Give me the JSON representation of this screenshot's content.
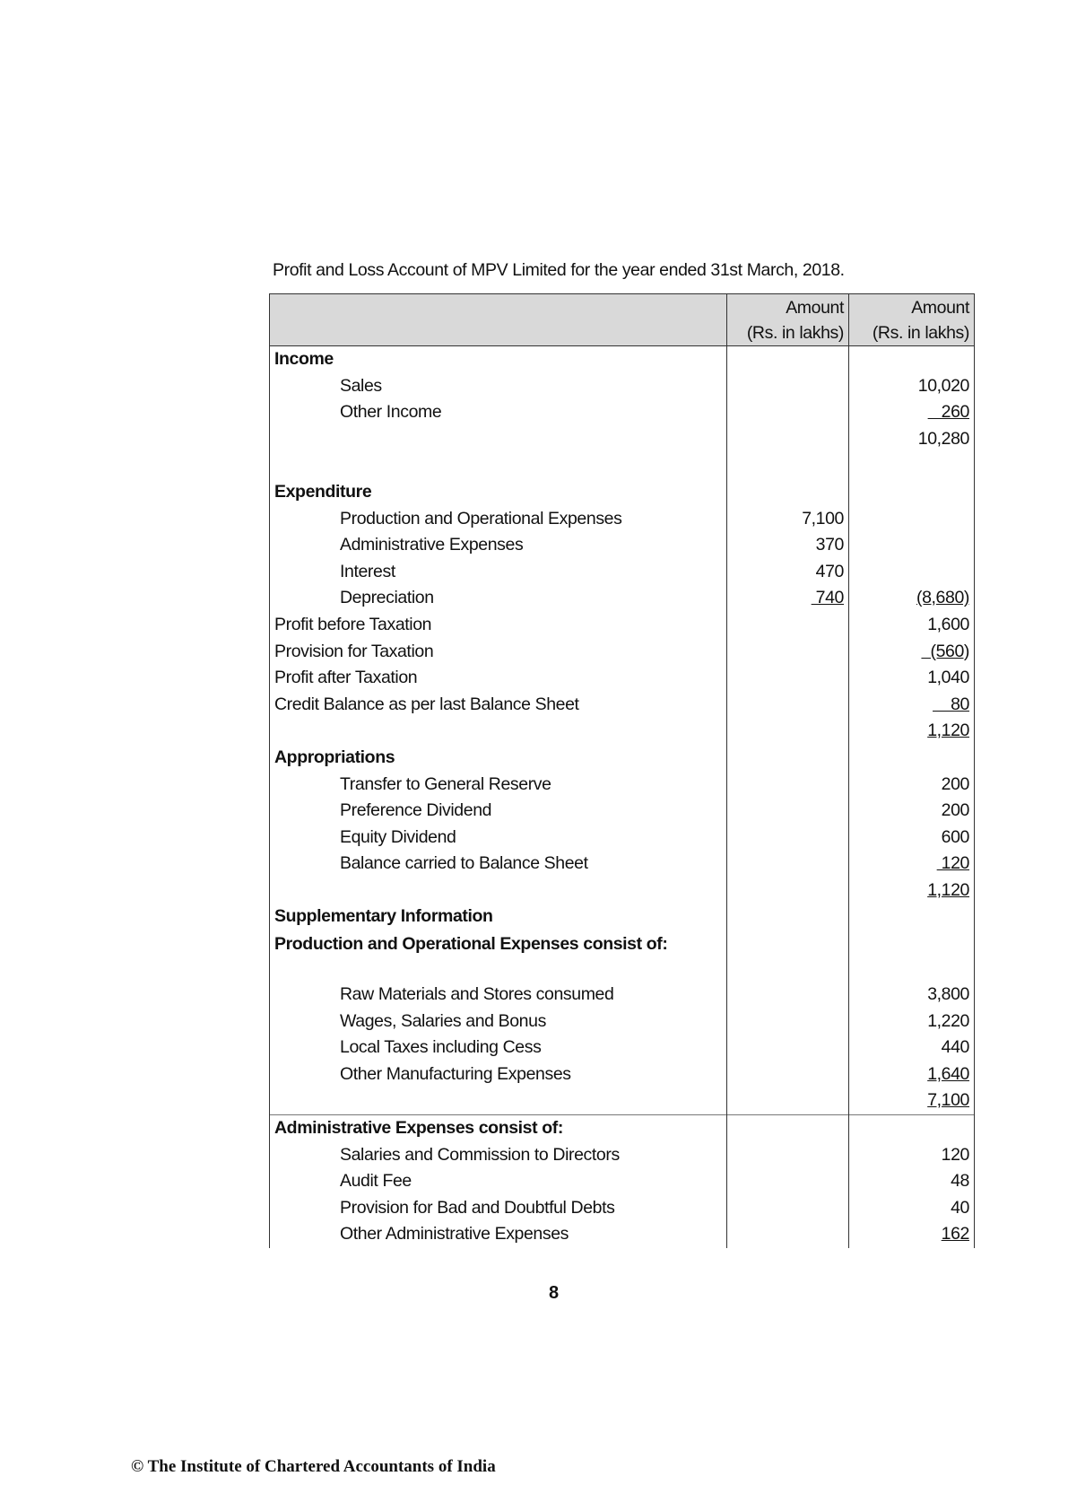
{
  "title": "Profit and Loss Account of MPV Limited for the year ended 31st March, 2018.",
  "header": {
    "col1_line1": "Amount",
    "col1_line2": "(Rs. in lakhs)",
    "col2_line1": "Amount",
    "col2_line2": "(Rs. in lakhs)"
  },
  "rows": [
    {
      "label": "Income",
      "bold": true
    },
    {
      "label": "Sales",
      "indent": true,
      "c2": "10,020"
    },
    {
      "label": "Other Income",
      "indent": true,
      "c2": "   260",
      "u2": true
    },
    {
      "label": "",
      "c2": "10,280"
    },
    {
      "label": ""
    },
    {
      "label": "Expenditure",
      "bold": true
    },
    {
      "label": "Production and Operational Expenses",
      "indent": true,
      "c1": "7,100"
    },
    {
      "label": "Administrative Expenses",
      "indent": true,
      "c1": "370"
    },
    {
      "label": "Interest",
      "indent": true,
      "c1": "470"
    },
    {
      "label": "Depreciation",
      "indent": true,
      "c1": " 740",
      "u1": true,
      "c2": "(8,680)",
      "u2": true
    },
    {
      "label": "Profit before Taxation",
      "c2": "1,600"
    },
    {
      "label": "Provision for Taxation",
      "c2": "  (560)",
      "u2": true
    },
    {
      "label": "Profit after Taxation",
      "c2": "1,040"
    },
    {
      "label": "Credit Balance as per last Balance Sheet",
      "c2": "    80",
      "u2": true
    },
    {
      "label": "",
      "c2": "1,120",
      "u2": true
    },
    {
      "label": "Appropriations",
      "bold": true
    },
    {
      "label": "Transfer to General Reserve",
      "indent": true,
      "c2": "200"
    },
    {
      "label": "Preference Dividend",
      "indent": true,
      "c2": "200"
    },
    {
      "label": "Equity Dividend",
      "indent": true,
      "c2": "600"
    },
    {
      "label": "Balance carried to Balance Sheet",
      "indent": true,
      "c2": " 120",
      "u2": true
    },
    {
      "label": "",
      "c2": "1,120",
      "u2": true
    },
    {
      "label": "Supplementary Information",
      "bold": true
    },
    {
      "label": "Production and Operational Expenses consist of:",
      "bold": true,
      "wrap": true
    },
    {
      "label": "Raw Materials and Stores consumed",
      "indent": true,
      "c2": "3,800"
    },
    {
      "label": "Wages, Salaries and Bonus",
      "indent": true,
      "c2": "1,220"
    },
    {
      "label": "Local Taxes including Cess",
      "indent": true,
      "c2": "440"
    },
    {
      "label": "Other Manufacturing Expenses",
      "indent": true,
      "c2": "1,640",
      "u2": true
    },
    {
      "label": "",
      "c2": "7,100",
      "u2": true
    },
    {
      "label": "Administrative Expenses consist of:",
      "bold": true,
      "sep": true
    },
    {
      "label": "Salaries and Commission to Directors",
      "indent": true,
      "c2": "120"
    },
    {
      "label": "Audit Fee",
      "indent": true,
      "c2": "48"
    },
    {
      "label": "Provision for Bad and Doubtful Debts",
      "indent": true,
      "c2": "40"
    },
    {
      "label": "Other Administrative Expenses",
      "indent": true,
      "c2": "162",
      "u2": true
    }
  ],
  "page_number": "8",
  "footer": "© The Institute of Chartered Accountants of India"
}
